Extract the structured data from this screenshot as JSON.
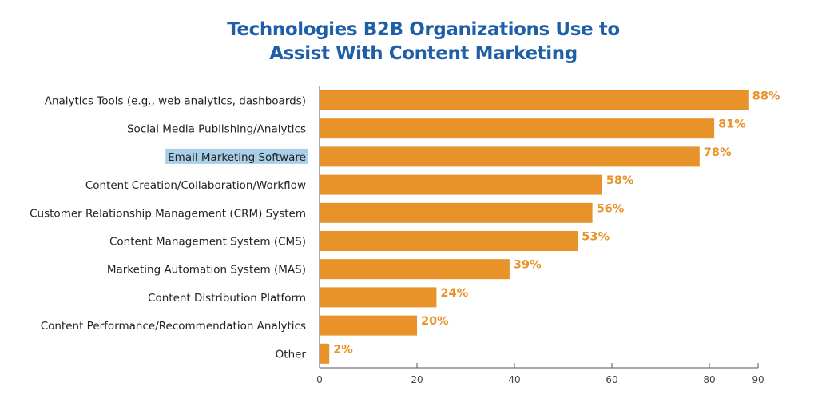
{
  "title": {
    "line1": "Technologies B2B Organizations Use to",
    "line2": "Assist With Content Marketing"
  },
  "colors": {
    "title": "#1f5fa8",
    "bar": "#e8922a",
    "value_label": "#e8922a",
    "highlight": "#a9cfe8"
  },
  "chart_data": {
    "type": "bar",
    "orientation": "horizontal",
    "categories": [
      "Analytics Tools (e.g., web analytics, dashboards)",
      "Social Media Publishing/Analytics",
      "Email Marketing Software",
      "Content Creation/Collaboration/Workflow",
      "Customer Relationship Management (CRM) System",
      "Content Management System (CMS)",
      "Marketing Automation System (MAS)",
      "Content Distribution Platform",
      "Content Performance/Recommendation Analytics",
      "Other"
    ],
    "values": [
      88,
      81,
      78,
      58,
      56,
      53,
      39,
      24,
      20,
      2
    ],
    "value_labels": [
      "88%",
      "81%",
      "78%",
      "58%",
      "56%",
      "53%",
      "39%",
      "24%",
      "20%",
      "2%"
    ],
    "highlighted_category": "Email Marketing Software",
    "xlim": [
      0,
      90
    ],
    "xticks": [
      0,
      20,
      40,
      60,
      80,
      90
    ],
    "xlabel": "",
    "ylabel": "",
    "grid": false,
    "legend": "none"
  }
}
